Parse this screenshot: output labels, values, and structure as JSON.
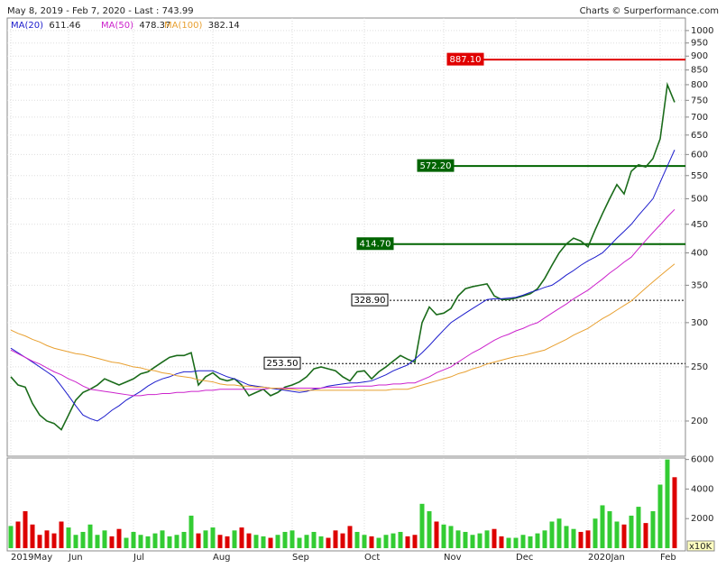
{
  "title": "May 8, 2019 - Feb 7, 2020 - Last : 743.99",
  "credit": "Charts © Surperformance.com",
  "chart_data": [
    {
      "type": "line",
      "log": true,
      "grid": true,
      "ylim": [
        173,
        1053
      ],
      "yticks": [
        200,
        250,
        300,
        350,
        400,
        450,
        500,
        550,
        600,
        650,
        700,
        750,
        800,
        850,
        900,
        950,
        1000
      ],
      "categories": [
        "2019May",
        null,
        null,
        null,
        null,
        null,
        null,
        null,
        "Jun",
        null,
        null,
        null,
        null,
        null,
        null,
        null,
        null,
        "Jul",
        null,
        null,
        null,
        null,
        null,
        null,
        null,
        null,
        null,
        null,
        "Aug",
        null,
        null,
        null,
        null,
        null,
        null,
        null,
        null,
        null,
        null,
        "Sep",
        null,
        null,
        null,
        null,
        null,
        null,
        null,
        null,
        null,
        "Oct",
        null,
        null,
        null,
        null,
        null,
        null,
        null,
        null,
        null,
        null,
        "Nov",
        null,
        null,
        null,
        null,
        null,
        null,
        null,
        null,
        null,
        "Dec",
        null,
        null,
        null,
        null,
        null,
        null,
        null,
        null,
        null,
        "2020Jan",
        null,
        null,
        null,
        null,
        null,
        null,
        null,
        null,
        null,
        "Feb",
        null,
        null
      ],
      "series": [
        {
          "color": "#1a6b1a",
          "values": [
            240,
            232,
            230,
            215,
            205,
            200,
            198,
            193,
            205,
            218,
            225,
            228,
            232,
            238,
            235,
            232,
            235,
            238,
            243,
            245,
            250,
            255,
            260,
            262,
            262,
            265,
            232,
            240,
            244,
            238,
            236,
            238,
            232,
            222,
            225,
            228,
            222,
            225,
            230,
            232,
            235,
            240,
            248,
            250,
            248,
            246,
            240,
            236,
            245,
            246,
            238,
            245,
            250,
            256,
            262,
            258,
            255,
            300,
            320,
            310,
            312,
            318,
            335,
            345,
            348,
            350,
            352,
            335,
            330,
            330,
            332,
            335,
            338,
            345,
            360,
            380,
            400,
            415,
            425,
            420,
            410,
            440,
            470,
            500,
            530,
            510,
            560,
            575,
            570,
            590,
            640,
            800,
            743.99
          ]
        },
        {
          "name": "MA(20)",
          "color": "#1c1ccc",
          "values": [
            270,
            265,
            260,
            255,
            250,
            245,
            240,
            231,
            222,
            213,
            205,
            202,
            200,
            204,
            209,
            213,
            218,
            222,
            226,
            231,
            235,
            238,
            240,
            243,
            245,
            245,
            246,
            246,
            246,
            243,
            240,
            238,
            235,
            232,
            231,
            230,
            229,
            228,
            227,
            226,
            225,
            226,
            228,
            229,
            231,
            232,
            233,
            234,
            234,
            235,
            236,
            239,
            242,
            246,
            249,
            252,
            258,
            265,
            273,
            282,
            291,
            300,
            306,
            312,
            318,
            324,
            330,
            331,
            331,
            332,
            333,
            336,
            340,
            343,
            347,
            350,
            357,
            365,
            372,
            380,
            387,
            393,
            400,
            412,
            425,
            437,
            450,
            467,
            483,
            500,
            535,
            572,
            611.46
          ]
        },
        {
          "name": "MA(50)",
          "color": "#cc22cc",
          "values": [
            268,
            264,
            260,
            256,
            253,
            249,
            245,
            242,
            238,
            235,
            231,
            228,
            227,
            226,
            225,
            224,
            223,
            222,
            222,
            223,
            223,
            224,
            224,
            225,
            225,
            226,
            226,
            227,
            227,
            228,
            228,
            228,
            228,
            228,
            228,
            228,
            229,
            229,
            229,
            229,
            229,
            229,
            229,
            229,
            230,
            230,
            230,
            230,
            231,
            231,
            231,
            232,
            232,
            233,
            233,
            234,
            234,
            237,
            240,
            244,
            247,
            250,
            255,
            260,
            265,
            269,
            274,
            279,
            283,
            286,
            290,
            293,
            297,
            300,
            306,
            312,
            318,
            324,
            331,
            337,
            343,
            351,
            359,
            368,
            376,
            385,
            393,
            407,
            421,
            435,
            449,
            464,
            478.37
          ]
        },
        {
          "name": "MA(100)",
          "color": "#e8a030",
          "values": [
            291,
            287,
            284,
            280,
            277,
            273,
            270,
            268,
            266,
            264,
            263,
            261,
            259,
            257,
            255,
            254,
            252,
            250,
            249,
            247,
            246,
            244,
            243,
            241,
            240,
            239,
            237,
            236,
            235,
            233,
            232,
            232,
            231,
            231,
            230,
            230,
            229,
            229,
            228,
            228,
            227,
            227,
            227,
            227,
            227,
            227,
            227,
            227,
            227,
            227,
            227,
            227,
            227,
            228,
            228,
            228,
            230,
            232,
            234,
            236,
            238,
            240,
            243,
            245,
            248,
            250,
            253,
            255,
            257,
            259,
            261,
            262,
            264,
            266,
            268,
            272,
            276,
            280,
            285,
            289,
            293,
            299,
            305,
            310,
            316,
            322,
            328,
            337,
            346,
            355,
            364,
            373,
            382.14
          ]
        }
      ],
      "levels": [
        {
          "value": 887.1,
          "label": "887.10",
          "color": "#e00000",
          "style": "solid"
        },
        {
          "value": 572.2,
          "label": "572.20",
          "color": "#006400",
          "style": "solid"
        },
        {
          "value": 414.7,
          "label": "414.70",
          "color": "#006400",
          "style": "solid"
        },
        {
          "value": 328.9,
          "label": "328.90",
          "color": "#000000",
          "style": "dashed"
        },
        {
          "value": 253.5,
          "label": "253.50",
          "color": "#000000",
          "style": "dashed"
        }
      ]
    },
    {
      "type": "bar",
      "unit": "x10K",
      "up_color": "#33cc33",
      "down_color": "#dd0000",
      "ylim": [
        0,
        6100
      ],
      "yticks": [
        2000,
        4000,
        6000
      ],
      "values": [
        1500,
        1800,
        2500,
        1600,
        900,
        1200,
        1000,
        1800,
        1400,
        900,
        1100,
        1600,
        900,
        1200,
        800,
        1300,
        700,
        1100,
        900,
        800,
        1000,
        1200,
        800,
        900,
        1100,
        2200,
        1000,
        1200,
        1400,
        900,
        800,
        1200,
        1400,
        1000,
        900,
        800,
        700,
        900,
        1100,
        1200,
        700,
        900,
        1100,
        800,
        700,
        1200,
        1000,
        1500,
        1100,
        900,
        800,
        700,
        900,
        1000,
        1100,
        800,
        900,
        3000,
        2500,
        1800,
        1600,
        1500,
        1200,
        1100,
        900,
        1000,
        1200,
        1300,
        800,
        700,
        700,
        900,
        800,
        1000,
        1200,
        1800,
        2000,
        1500,
        1300,
        1100,
        1200,
        2000,
        2900,
        2500,
        1800,
        1600,
        2200,
        2800,
        1700,
        2500,
        4300,
        6000,
        4800
      ]
    }
  ]
}
